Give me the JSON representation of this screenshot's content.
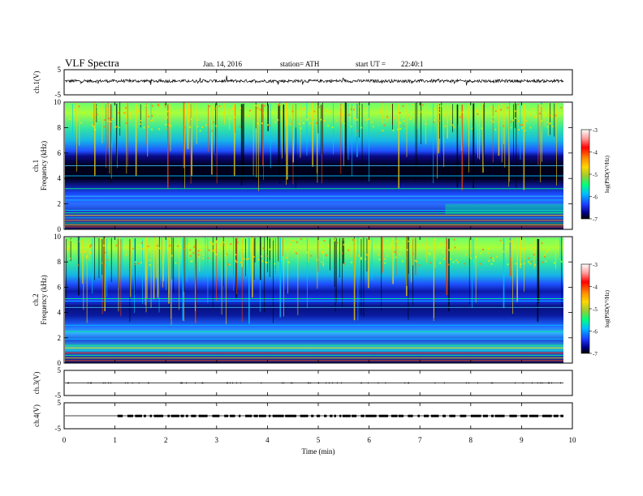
{
  "header": {
    "title": "VLF Spectra",
    "date": "Jan. 14, 2016",
    "station": "station= ATH",
    "start_label": "start UT =",
    "start_time": "22:40:1"
  },
  "chart_data": [
    {
      "type": "line",
      "ylabel": "ch.1(V)",
      "ylim": [
        -5,
        5
      ],
      "yticks": [
        "5",
        "-5"
      ],
      "description_values": {
        "baseline_v": 0.5,
        "noise_amplitude_v": 0.6
      }
    },
    {
      "type": "heatmap",
      "channel_label": "ch.1",
      "ylabel": "Frequency (kHz)",
      "ylim": [
        0,
        10
      ],
      "yticks": [
        "0",
        "2",
        "4",
        "6",
        "8",
        "10"
      ],
      "colorbar": {
        "label": "log(PSD(V²/Hz)",
        "range": [
          -7,
          -3
        ],
        "ticks": [
          "-3",
          "-4",
          "-5",
          "-6",
          "-7"
        ]
      },
      "colormap": [
        "#000000",
        "#0000a0",
        "#1e46ff",
        "#00c8ff",
        "#00ff7f",
        "#c8ff00",
        "#ffd700",
        "#ff4500",
        "#ff0000",
        "#ffb0b0"
      ]
    },
    {
      "type": "heatmap",
      "channel_label": "ch.2",
      "ylabel": "Frequency (kHz)",
      "ylim": [
        0,
        10
      ],
      "yticks": [
        "0",
        "2",
        "4",
        "6",
        "8",
        "10"
      ],
      "colorbar": {
        "label": "log(PSD(V²/Hz)",
        "range": [
          -7,
          -3
        ],
        "ticks": [
          "-3",
          "-4",
          "-5",
          "-6",
          "-7"
        ]
      },
      "colormap": [
        "#000000",
        "#0000a0",
        "#1e46ff",
        "#00c8ff",
        "#00ff7f",
        "#c8ff00",
        "#ffd700",
        "#ff4500",
        "#ff0000",
        "#ffb0b0"
      ]
    },
    {
      "type": "line",
      "ylabel": "ch.3(V)",
      "ylim": [
        -5,
        5
      ],
      "yticks": [
        "5",
        "-5"
      ],
      "description_values": {
        "baseline_v": 0
      }
    },
    {
      "type": "line",
      "ylabel": "ch.4(V)",
      "ylim": [
        -5,
        5
      ],
      "yticks": [
        "5",
        "-5"
      ],
      "description_values": {
        "baseline_v": 0,
        "pulse_level_v": 0.4,
        "pulse_start_min": 1.05
      }
    }
  ],
  "x_axis": {
    "label": "Time (min)",
    "range": [
      0,
      10
    ],
    "ticks": [
      "0",
      "1",
      "2",
      "3",
      "4",
      "5",
      "6",
      "7",
      "8",
      "9",
      "10"
    ]
  }
}
